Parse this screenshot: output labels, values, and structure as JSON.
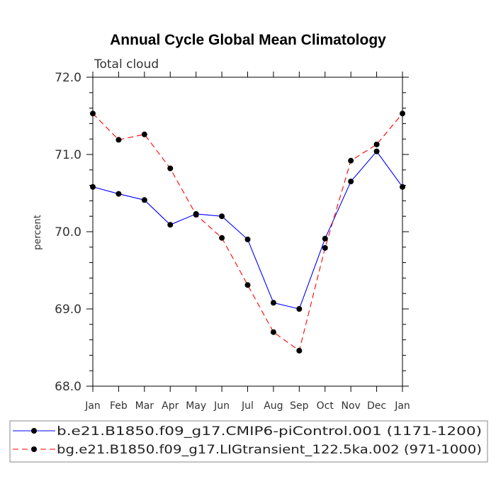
{
  "chart_data": {
    "type": "line",
    "title": "Annual Cycle Global Mean Climatology",
    "subtitle": "Total cloud",
    "xlabel": "",
    "ylabel": "percent",
    "categories": [
      "Jan",
      "Feb",
      "Mar",
      "Apr",
      "May",
      "Jun",
      "Jul",
      "Aug",
      "Sep",
      "Oct",
      "Nov",
      "Dec",
      "Jan"
    ],
    "ylim": [
      68.0,
      72.0
    ],
    "yticks": [
      "68.0",
      "69.0",
      "70.0",
      "71.0",
      "72.0"
    ],
    "series": [
      {
        "name": "b.e21.B1850.f09_g17.CMIP6-piControl.001 (1171-1200)",
        "color": "#0000ff",
        "dash": "solid",
        "values": [
          70.58,
          70.49,
          70.41,
          70.09,
          70.23,
          70.2,
          69.9,
          69.08,
          69.0,
          69.91,
          70.65,
          71.04,
          70.58
        ]
      },
      {
        "name": "bg.e21.B1850.f09_g17.LIGtransient_122.5ka.002 (971-1000)",
        "color": "#ff0000",
        "dash": "dashed",
        "values": [
          71.53,
          71.19,
          71.26,
          70.82,
          70.22,
          69.92,
          69.31,
          68.7,
          68.46,
          69.79,
          70.92,
          71.13,
          71.53
        ]
      }
    ]
  }
}
